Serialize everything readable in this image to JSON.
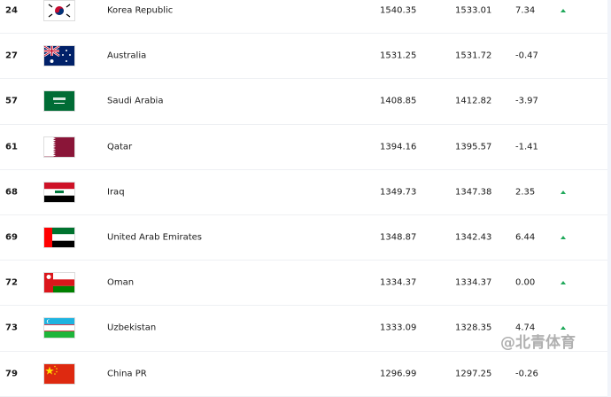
{
  "rows": [
    {
      "rank": "24",
      "team": "Korea Republic",
      "flag": "kor",
      "points": "1540.35",
      "previous_points": "1533.01",
      "change": "7.34",
      "trend": "up"
    },
    {
      "rank": "27",
      "team": "Australia",
      "flag": "aus",
      "points": "1531.25",
      "previous_points": "1531.72",
      "change": "-0.47",
      "trend": "none"
    },
    {
      "rank": "57",
      "team": "Saudi Arabia",
      "flag": "ksa",
      "points": "1408.85",
      "previous_points": "1412.82",
      "change": "-3.97",
      "trend": "none"
    },
    {
      "rank": "61",
      "team": "Qatar",
      "flag": "qat",
      "points": "1394.16",
      "previous_points": "1395.57",
      "change": "-1.41",
      "trend": "none"
    },
    {
      "rank": "68",
      "team": "Iraq",
      "flag": "irq",
      "points": "1349.73",
      "previous_points": "1347.38",
      "change": "2.35",
      "trend": "up"
    },
    {
      "rank": "69",
      "team": "United Arab Emirates",
      "flag": "uae",
      "points": "1348.87",
      "previous_points": "1342.43",
      "change": "6.44",
      "trend": "up"
    },
    {
      "rank": "72",
      "team": "Oman",
      "flag": "oma",
      "points": "1334.37",
      "previous_points": "1334.37",
      "change": "0.00",
      "trend": "up"
    },
    {
      "rank": "73",
      "team": "Uzbekistan",
      "flag": "uzb",
      "points": "1333.09",
      "previous_points": "1328.35",
      "change": "4.74",
      "trend": "up"
    },
    {
      "rank": "79",
      "team": "China PR",
      "flag": "chn",
      "points": "1296.99",
      "previous_points": "1297.25",
      "change": "-0.26",
      "trend": "none"
    }
  ],
  "colors": {
    "up": "#1fa85a"
  },
  "watermark": "@北青体育"
}
